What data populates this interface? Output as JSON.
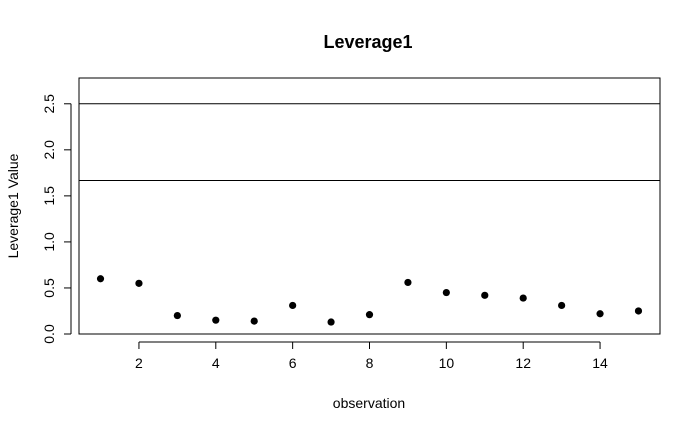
{
  "chart_data": {
    "type": "scatter",
    "title": "Leverage1",
    "xlabel": "observation",
    "ylabel": "Leverage1 Value",
    "xlim": [
      0.44,
      15.56
    ],
    "ylim": [
      0,
      2.78
    ],
    "x_ticks": [
      2,
      4,
      6,
      8,
      10,
      12,
      14
    ],
    "y_ticks": [
      0.0,
      0.5,
      1.0,
      1.5,
      2.0,
      2.5
    ],
    "x_tick_labels": [
      "2",
      "4",
      "6",
      "8",
      "10",
      "12",
      "14"
    ],
    "y_tick_labels": [
      "0.0",
      "0.5",
      "1.0",
      "1.5",
      "2.0",
      "2.5"
    ],
    "grid": false,
    "legend": "none",
    "reference_lines": [
      1.667,
      2.5
    ],
    "point_color": "#000000",
    "series": [
      {
        "x": [
          1,
          2,
          3,
          4,
          5,
          6,
          7,
          8,
          9,
          10,
          11,
          12,
          13,
          14,
          15
        ],
        "values": [
          0.6,
          0.55,
          0.2,
          0.15,
          0.14,
          0.31,
          0.13,
          0.21,
          0.56,
          0.45,
          0.42,
          0.39,
          0.31,
          0.22,
          0.25
        ]
      }
    ]
  }
}
